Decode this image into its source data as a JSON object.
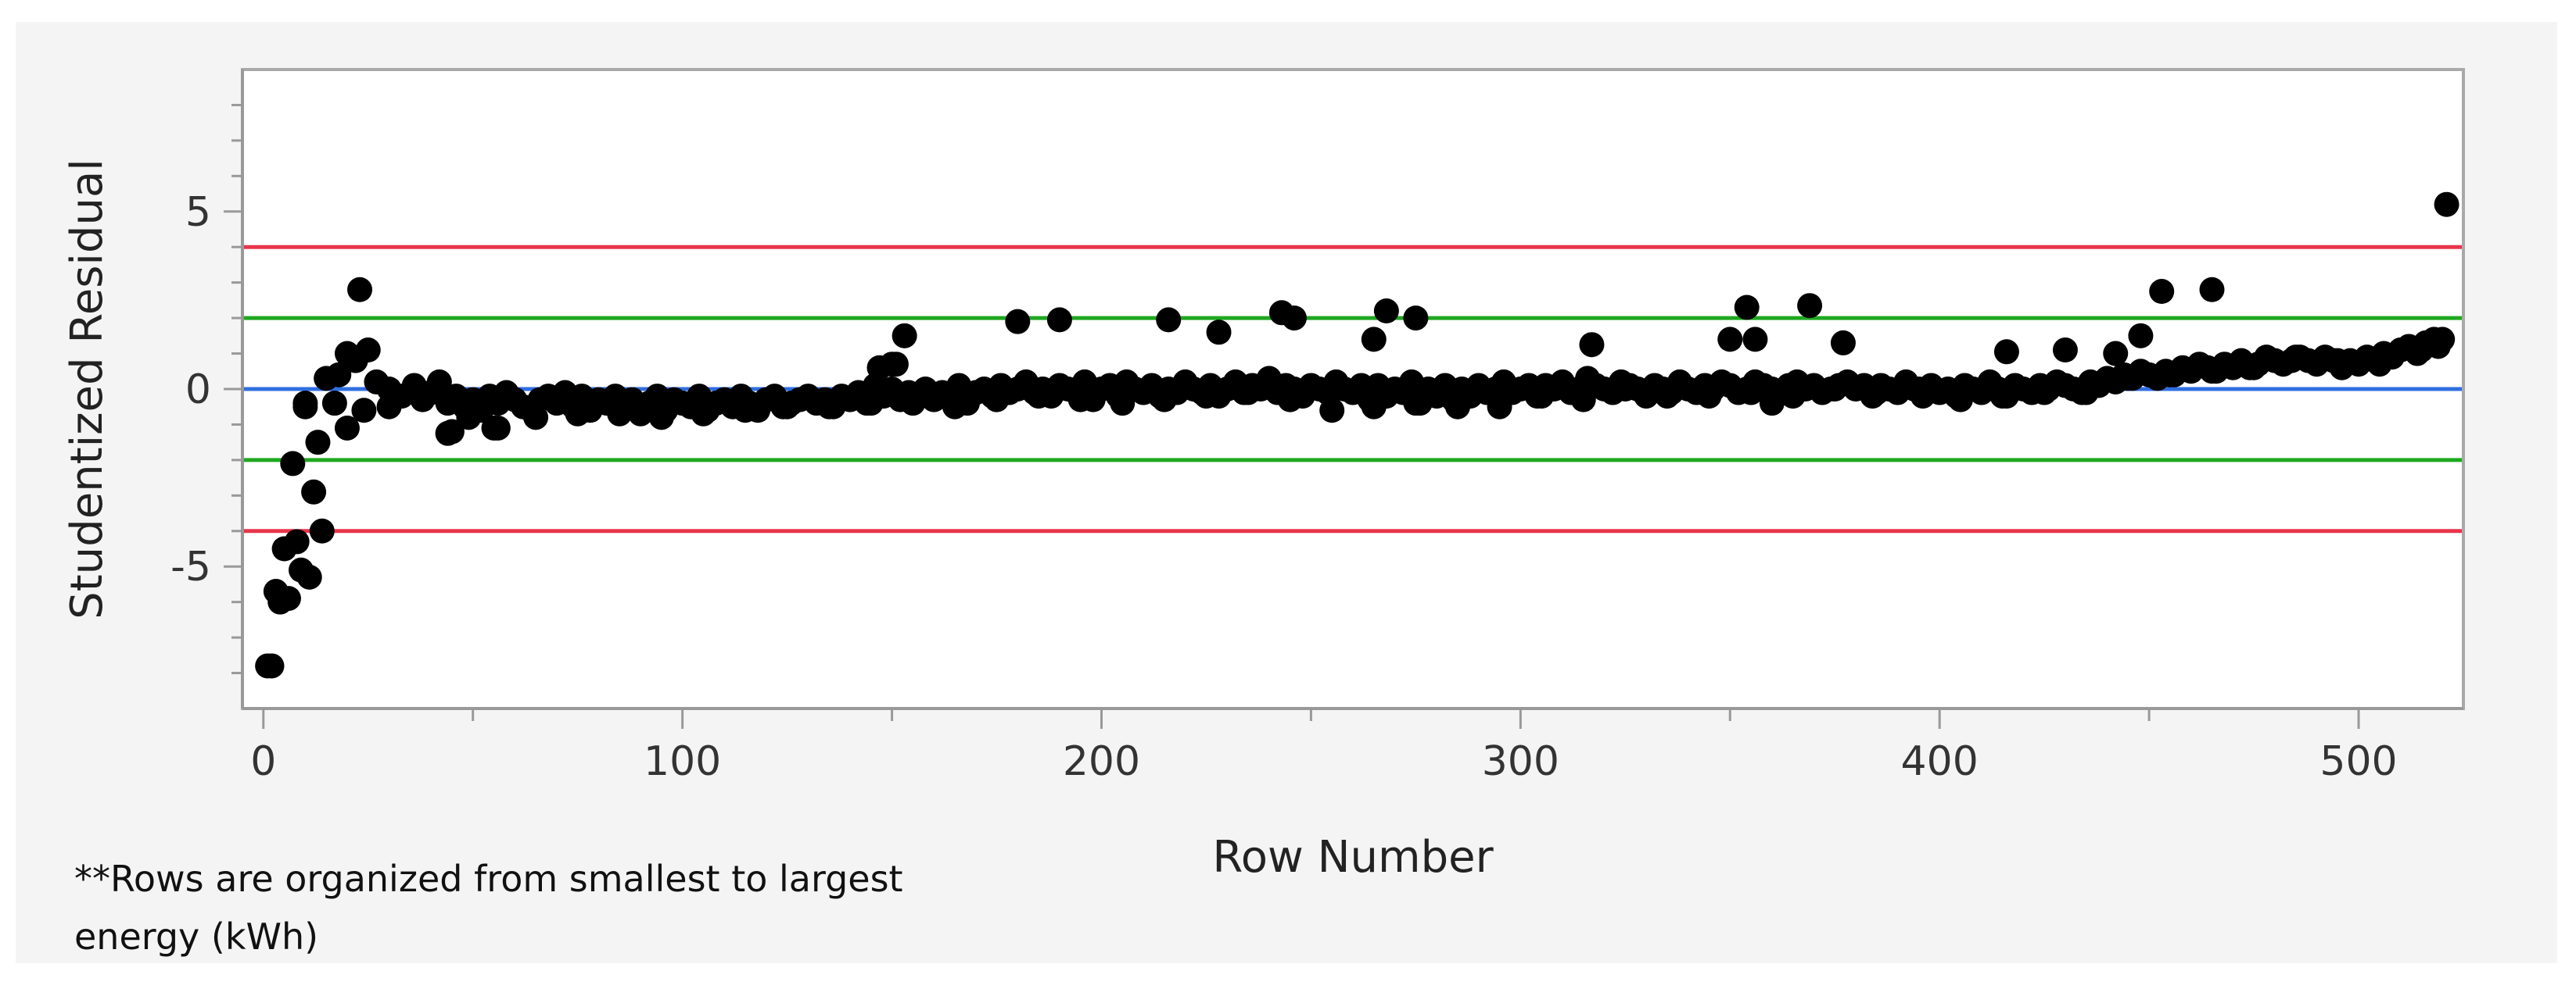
{
  "chart_data": {
    "type": "scatter",
    "title": "",
    "xlabel": "Row Number",
    "ylabel": "Studentized Residual",
    "xlim": [
      -5,
      525
    ],
    "ylim": [
      -9,
      9
    ],
    "x_ticks": [
      0,
      100,
      200,
      300,
      400,
      500
    ],
    "x_tick_labels": [
      "0",
      "100",
      "200",
      "300",
      "400",
      "500"
    ],
    "y_ticks": [
      -5,
      0,
      5
    ],
    "y_tick_labels": [
      "-5",
      "0",
      "5"
    ],
    "reference_lines": [
      {
        "y": 4,
        "color": "#e8354a"
      },
      {
        "y": 2,
        "color": "#1fa81f"
      },
      {
        "y": 0,
        "color": "#2f6fe0"
      },
      {
        "y": -2,
        "color": "#1fa81f"
      },
      {
        "y": -4,
        "color": "#e8354a"
      }
    ],
    "point_color": "#000000",
    "x": [
      1,
      2,
      3,
      4,
      5,
      6,
      7,
      8,
      9,
      10,
      11,
      12,
      13,
      14,
      15,
      17,
      18,
      20,
      22,
      23,
      24,
      25,
      27,
      30,
      33,
      36,
      38,
      40,
      42,
      44,
      46,
      48,
      50,
      52,
      54,
      56,
      58,
      60,
      62,
      64,
      66,
      68,
      70,
      72,
      74,
      76,
      78,
      80,
      82,
      84,
      86,
      88,
      90,
      92,
      94,
      96,
      98,
      100,
      102,
      104,
      106,
      108,
      110,
      112,
      114,
      116,
      118,
      120,
      122,
      124,
      126,
      128,
      130,
      132,
      134,
      136,
      138,
      140,
      142,
      144,
      146,
      148,
      150,
      152,
      154,
      156,
      158,
      160,
      162,
      164,
      166,
      168,
      170,
      172,
      174,
      176,
      178,
      180,
      182,
      184,
      186,
      188,
      190,
      192,
      194,
      196,
      198,
      200,
      202,
      204,
      206,
      208,
      210,
      212,
      214,
      216,
      218,
      220,
      222,
      224,
      226,
      228,
      230,
      232,
      234,
      236,
      238,
      240,
      242,
      244,
      246,
      248,
      250,
      252,
      254,
      256,
      258,
      260,
      262,
      264,
      266,
      268,
      270,
      272,
      274,
      276,
      278,
      280,
      282,
      284,
      286,
      288,
      290,
      292,
      294,
      296,
      298,
      300,
      302,
      304,
      306,
      308,
      310,
      312,
      314,
      316,
      318,
      320,
      322,
      324,
      326,
      328,
      330,
      332,
      334,
      336,
      338,
      340,
      342,
      344,
      346,
      348,
      350,
      352,
      354,
      356,
      358,
      360,
      362,
      364,
      366,
      368,
      370,
      372,
      374,
      376,
      378,
      380,
      382,
      384,
      386,
      388,
      390,
      392,
      394,
      396,
      398,
      400,
      402,
      404,
      406,
      408,
      410,
      412,
      414,
      416,
      418,
      420,
      422,
      424,
      426,
      428,
      430,
      432,
      434,
      436,
      438,
      440,
      442,
      444,
      446,
      448,
      450,
      452,
      454,
      456,
      458,
      460,
      462,
      464,
      466,
      468,
      470,
      472,
      474,
      476,
      478,
      480,
      482,
      484,
      486,
      488,
      490,
      492,
      494,
      496,
      498,
      500,
      502,
      504,
      506,
      508,
      510,
      512,
      514,
      516,
      518,
      519,
      520,
      521,
      10,
      20,
      45,
      55,
      65,
      75,
      85,
      95,
      105,
      115,
      125,
      135,
      145,
      155,
      165,
      175,
      185,
      195,
      205,
      215,
      225,
      235,
      245,
      255,
      265,
      275,
      285,
      295,
      305,
      315,
      325,
      335,
      345,
      355,
      365,
      375,
      385,
      395,
      405,
      415,
      425,
      435,
      445,
      455,
      465,
      475,
      485,
      495,
      505,
      515,
      150,
      153,
      180,
      190,
      216,
      228,
      243,
      246,
      268,
      275,
      265,
      317,
      350,
      354,
      356,
      369,
      377,
      416,
      430,
      448,
      453,
      465,
      442,
      360,
      44,
      56,
      49,
      30,
      147,
      151
    ],
    "y": [
      -7.8,
      -7.8,
      -5.7,
      -6.0,
      -4.5,
      -5.9,
      -2.1,
      -4.3,
      -5.1,
      -0.5,
      -5.3,
      -2.9,
      -1.5,
      -4.0,
      0.3,
      -0.4,
      0.4,
      1.0,
      0.8,
      2.8,
      -0.6,
      1.1,
      0.2,
      0.0,
      -0.2,
      0.1,
      -0.3,
      -0.1,
      0.2,
      -0.4,
      -0.2,
      -0.5,
      -0.3,
      -0.6,
      -0.2,
      -0.4,
      -0.1,
      -0.3,
      -0.5,
      -0.6,
      -0.3,
      -0.2,
      -0.4,
      -0.1,
      -0.5,
      -0.2,
      -0.6,
      -0.3,
      -0.4,
      -0.2,
      -0.5,
      -0.3,
      -0.7,
      -0.4,
      -0.2,
      -0.6,
      -0.3,
      -0.4,
      -0.5,
      -0.2,
      -0.6,
      -0.4,
      -0.3,
      -0.5,
      -0.2,
      -0.4,
      -0.6,
      -0.3,
      -0.2,
      -0.5,
      -0.4,
      -0.3,
      -0.2,
      -0.4,
      -0.3,
      -0.5,
      -0.2,
      -0.3,
      -0.1,
      -0.4,
      0.1,
      -0.2,
      0.0,
      -0.3,
      -0.1,
      -0.2,
      0.0,
      -0.3,
      -0.1,
      -0.2,
      0.1,
      -0.4,
      -0.1,
      0.0,
      -0.2,
      0.1,
      -0.1,
      0.0,
      0.2,
      -0.1,
      0.0,
      -0.2,
      0.1,
      0.0,
      -0.1,
      0.2,
      -0.3,
      0.0,
      0.1,
      -0.2,
      0.2,
      0.0,
      -0.1,
      0.1,
      -0.2,
      0.0,
      -0.1,
      0.2,
      0.0,
      -0.1,
      0.1,
      -0.2,
      0.0,
      0.2,
      -0.1,
      0.1,
      0.0,
      0.3,
      -0.1,
      0.1,
      0.0,
      -0.2,
      0.1,
      0.0,
      -0.1,
      0.2,
      0.0,
      -0.1,
      0.1,
      -0.3,
      0.1,
      -0.2,
      0.0,
      -0.1,
      0.2,
      -0.4,
      0.0,
      -0.2,
      0.1,
      -0.3,
      0.0,
      -0.2,
      0.1,
      -0.1,
      0.0,
      0.2,
      -0.1,
      0.0,
      0.1,
      -0.2,
      0.1,
      0.0,
      0.2,
      -0.1,
      0.0,
      0.3,
      0.1,
      0.0,
      -0.1,
      0.2,
      0.1,
      0.0,
      -0.2,
      0.1,
      0.0,
      -0.1,
      0.2,
      0.0,
      -0.1,
      0.1,
      0.0,
      0.2,
      0.1,
      -0.1,
      0.0,
      0.2,
      0.1,
      0.0,
      -0.1,
      0.1,
      0.2,
      0.0,
      0.1,
      -0.1,
      0.0,
      0.1,
      0.2,
      0.0,
      0.1,
      -0.2,
      0.1,
      0.0,
      -0.1,
      0.2,
      0.0,
      -0.2,
      0.1,
      -0.1,
      0.0,
      -0.2,
      0.1,
      0.0,
      -0.1,
      0.2,
      0.0,
      -0.2,
      0.1,
      0.0,
      -0.1,
      0.1,
      0.0,
      0.2,
      0.1,
      0.0,
      -0.1,
      0.2,
      0.1,
      0.3,
      0.2,
      0.4,
      0.3,
      0.5,
      0.4,
      0.3,
      0.5,
      0.4,
      0.6,
      0.5,
      0.7,
      0.6,
      0.5,
      0.7,
      0.6,
      0.8,
      0.6,
      0.7,
      0.9,
      0.8,
      0.7,
      0.8,
      0.9,
      0.8,
      0.7,
      0.9,
      0.8,
      0.6,
      0.8,
      0.7,
      0.9,
      0.8,
      1.0,
      0.9,
      1.1,
      1.2,
      1.0,
      1.3,
      1.4,
      1.2,
      1.4,
      5.2,
      -0.4,
      -1.1,
      -1.2,
      -1.1,
      -0.8,
      -0.7,
      -0.7,
      -0.8,
      -0.7,
      -0.6,
      -0.5,
      -0.5,
      -0.4,
      -0.4,
      -0.5,
      -0.3,
      -0.2,
      -0.3,
      -0.4,
      -0.3,
      -0.2,
      -0.1,
      -0.3,
      -0.6,
      -0.5,
      -0.4,
      -0.5,
      -0.5,
      -0.2,
      -0.3,
      0.0,
      -0.2,
      -0.2,
      -0.1,
      -0.2,
      0.0,
      -0.1,
      0.0,
      -0.3,
      -0.2,
      -0.1,
      -0.1,
      0.3,
      0.4,
      0.5,
      0.6,
      0.9,
      0.8,
      0.7,
      1.1,
      0.7,
      1.5,
      1.9,
      1.95,
      1.95,
      1.6,
      2.15,
      2.0,
      2.2,
      2.0,
      1.4,
      1.25,
      1.4,
      2.3,
      1.4,
      2.35,
      1.3,
      1.05,
      1.1,
      1.5,
      2.75,
      2.8,
      1.0,
      -0.4,
      -1.25,
      -1.1,
      -0.8,
      -0.5,
      0.6,
      0.7
    ]
  },
  "footnote": "**Rows are organized from smallest to largest energy (kWh)"
}
